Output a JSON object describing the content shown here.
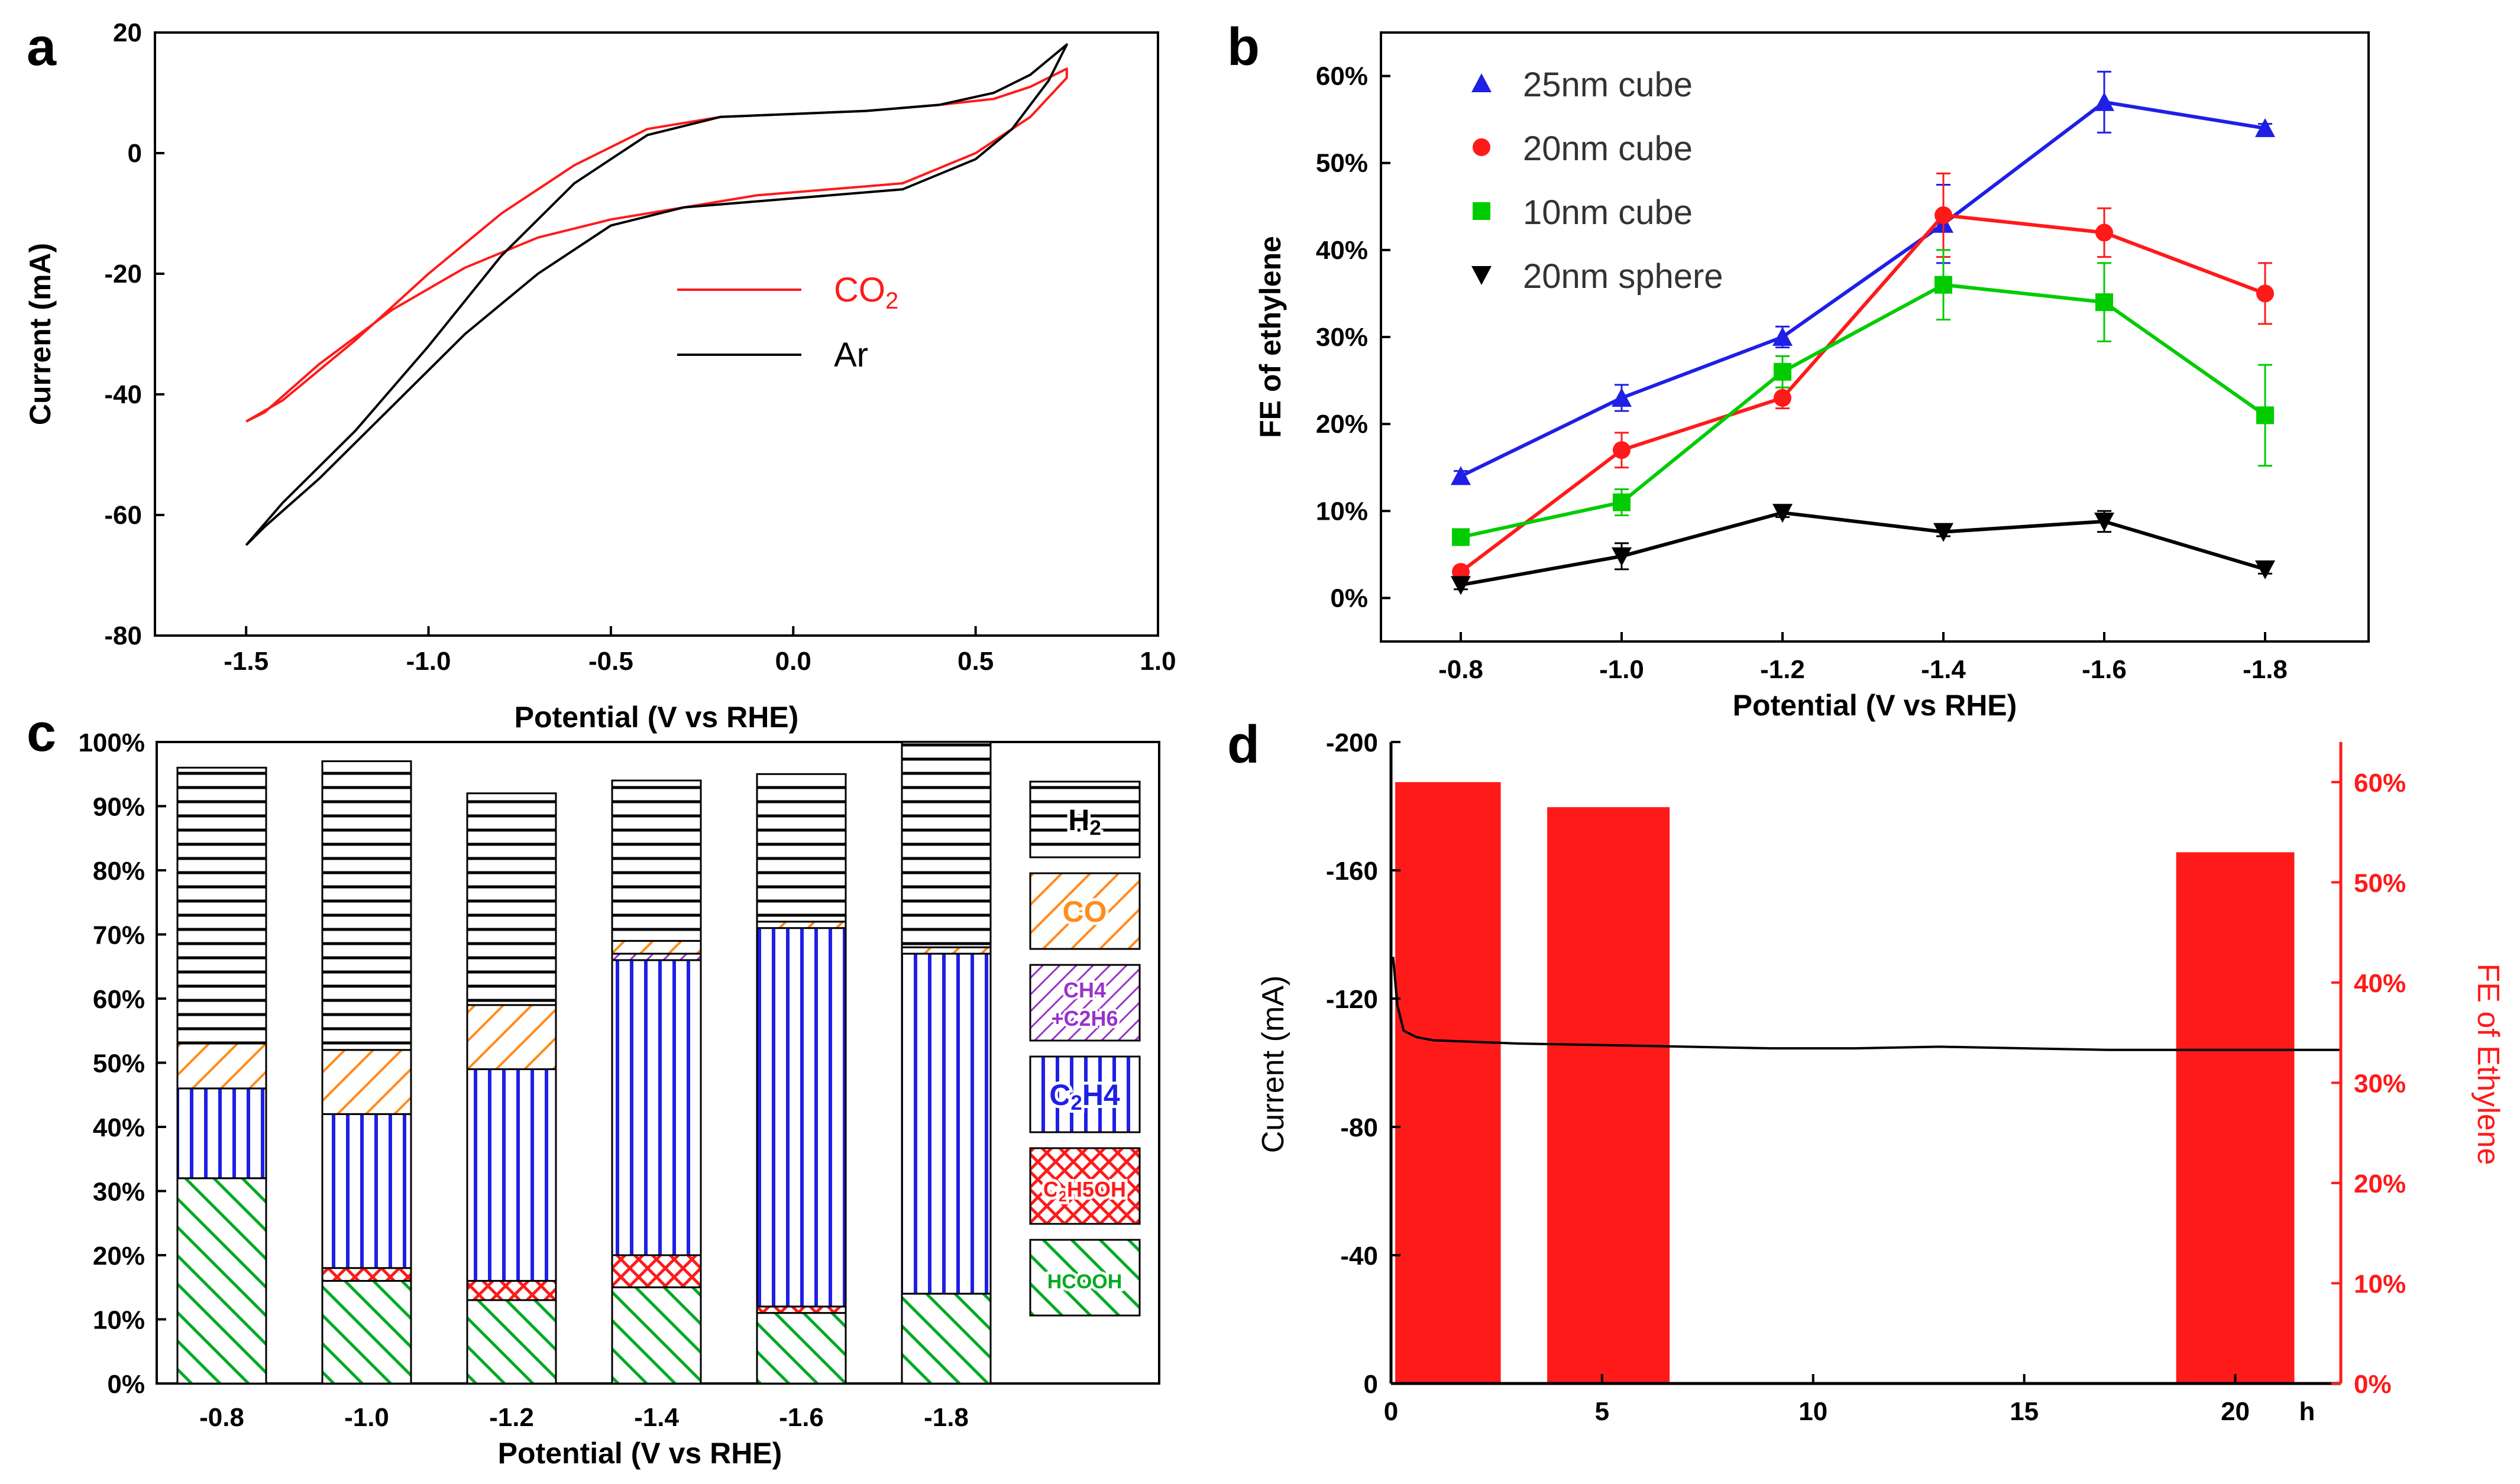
{
  "figure": {
    "panels": [
      {
        "id": "a",
        "label": "a"
      },
      {
        "id": "b",
        "label": "b"
      },
      {
        "id": "c",
        "label": "c"
      },
      {
        "id": "d",
        "label": "d"
      }
    ]
  },
  "colors": {
    "red": "#ff1a1a",
    "black": "#000000",
    "blue": "#1f1fe6",
    "green": "#00cc00",
    "orange": "#ff8c1a",
    "purple": "#9933cc",
    "hatchGreen": "#00aa22"
  },
  "chart_data": [
    {
      "id": "a",
      "type": "line",
      "title": "",
      "xlabel": "Potential (V vs RHE)",
      "ylabel": "Current (mA)",
      "xlim": [
        -1.75,
        1.0
      ],
      "ylim": [
        -80,
        20
      ],
      "xticks": [
        -1.5,
        -1.0,
        -0.5,
        0.0,
        0.5,
        1.0
      ],
      "xtick_labels": [
        "-1.5",
        "-1.0",
        "-0.5",
        "0.0",
        "0.5",
        "1.0"
      ],
      "yticks": [
        -80,
        -60,
        -40,
        -20,
        0,
        20
      ],
      "ytick_labels": [
        "-80",
        "-60",
        "-40",
        "-20",
        "0",
        "20"
      ],
      "series": [
        {
          "name": "CO2",
          "label_main": "CO",
          "label_sub": "2",
          "color": "#ff1a1a",
          "x": [
            -1.5,
            -1.4,
            -1.2,
            -1.0,
            -0.8,
            -0.6,
            -0.4,
            -0.2,
            0.0,
            0.2,
            0.4,
            0.55,
            0.65,
            0.75,
            0.75,
            0.65,
            0.5,
            0.3,
            0.1,
            -0.1,
            -0.3,
            -0.5,
            -0.7,
            -0.9,
            -1.1,
            -1.3,
            -1.45,
            -1.5
          ],
          "y": [
            -44.5,
            -41,
            -31,
            -20,
            -10,
            -2,
            4,
            6,
            6.5,
            7,
            8,
            9,
            11,
            14,
            12.5,
            6,
            0,
            -5,
            -6,
            -7,
            -9,
            -11,
            -14,
            -19,
            -26,
            -35,
            -43,
            -44.5
          ]
        },
        {
          "name": "Ar",
          "label_main": "Ar",
          "label_sub": "",
          "color": "#000000",
          "x": [
            -1.5,
            -1.4,
            -1.2,
            -1.0,
            -0.8,
            -0.6,
            -0.4,
            -0.2,
            0.0,
            0.2,
            0.4,
            0.55,
            0.65,
            0.75,
            0.7,
            0.6,
            0.5,
            0.3,
            0.1,
            -0.1,
            -0.3,
            -0.5,
            -0.7,
            -0.9,
            -1.1,
            -1.3,
            -1.45,
            -1.5
          ],
          "y": [
            -65,
            -58,
            -46,
            -32,
            -17,
            -5,
            3,
            6,
            6.5,
            7,
            8,
            10,
            13,
            18,
            12,
            4,
            -1,
            -6,
            -7,
            -8,
            -9,
            -12,
            -20,
            -30,
            -42,
            -54,
            -62,
            -65
          ]
        }
      ],
      "legend": "center-right"
    },
    {
      "id": "b",
      "type": "line",
      "title": "",
      "xlabel": "Potential (V vs RHE)",
      "ylabel": "FE of ethylene",
      "categories": [
        "-0.8",
        "-1.0",
        "-1.2",
        "-1.4",
        "-1.6",
        "-1.8"
      ],
      "ylim": [
        -5,
        65
      ],
      "yticks": [
        0,
        10,
        20,
        30,
        40,
        50,
        60
      ],
      "ytick_labels": [
        "0%",
        "10%",
        "20%",
        "30%",
        "40%",
        "50%",
        "60%"
      ],
      "series": [
        {
          "name": "25nm cube",
          "color": "#1f1fe6",
          "marker": "triangle-up",
          "values": [
            14,
            23,
            30,
            43,
            57,
            54
          ],
          "errors": [
            0.6,
            1.5,
            1.2,
            4.5,
            3.5,
            0.5
          ]
        },
        {
          "name": "20nm cube",
          "color": "#ff1a1a",
          "marker": "circle",
          "values": [
            3,
            17,
            23,
            44,
            42,
            35
          ],
          "errors": [
            0.5,
            2.0,
            1.2,
            4.8,
            2.8,
            3.5
          ]
        },
        {
          "name": "10nm cube",
          "color": "#00cc00",
          "marker": "square",
          "values": [
            7,
            11,
            26,
            36,
            34,
            21
          ],
          "errors": [
            0.5,
            1.5,
            1.8,
            4.0,
            4.5,
            5.8
          ]
        },
        {
          "name": "20nm sphere",
          "color": "#000000",
          "marker": "triangle-down",
          "values": [
            1.5,
            4.8,
            9.8,
            7.6,
            8.8,
            3.3
          ],
          "errors": [
            0.5,
            1.5,
            0.5,
            0.5,
            1.2,
            0.5
          ]
        }
      ],
      "legend": "top-left"
    },
    {
      "id": "c",
      "type": "bar",
      "stacked": true,
      "title": "",
      "xlabel": "Potential (V vs RHE)",
      "ylabel": "",
      "categories": [
        "-0.8",
        "-1.0",
        "-1.2",
        "-1.4",
        "-1.6",
        "-1.8"
      ],
      "ylim": [
        0,
        100
      ],
      "yticks": [
        0,
        10,
        20,
        30,
        40,
        50,
        60,
        70,
        80,
        90,
        100
      ],
      "ytick_labels": [
        "0%",
        "10%",
        "20%",
        "30%",
        "40%",
        "50%",
        "60%",
        "70%",
        "80%",
        "90%",
        "100%"
      ],
      "series": [
        {
          "name": "HCOOH",
          "label_main": "HCOOH",
          "label_main2": "",
          "label_sub": "",
          "label_rest": "",
          "pattern": "diag",
          "color": "#00aa22",
          "values": [
            32,
            16,
            13,
            15,
            11,
            14
          ]
        },
        {
          "name": "C2H5OH",
          "label_main": "C",
          "label_main2": "",
          "label_sub": "2",
          "label_rest": "H5OH",
          "pattern": "cross",
          "color": "#ff1a1a",
          "values": [
            0,
            2,
            3,
            5,
            1,
            0
          ]
        },
        {
          "name": "C2H4",
          "label_main": "C",
          "label_main2": "",
          "label_sub": "2",
          "label_rest": "H4",
          "pattern": "vert",
          "color": "#1f1fe6",
          "values": [
            14,
            24,
            33,
            46,
            59,
            53
          ]
        },
        {
          "name": "CH4+C2H6",
          "label_main": "CH4",
          "label_main2": "+C2H6",
          "label_sub": "",
          "label_rest": "",
          "pattern": "diag2",
          "color": "#9933cc",
          "values": [
            0,
            0,
            0,
            1,
            0,
            0
          ]
        },
        {
          "name": "CO",
          "label_main": "CO",
          "label_main2": "",
          "label_sub": "",
          "label_rest": "",
          "pattern": "diagOrange",
          "color": "#ff8c1a",
          "values": [
            7,
            10,
            10,
            2,
            1,
            1
          ]
        },
        {
          "name": "H2",
          "label_main": "H",
          "label_main2": "",
          "label_sub": "2",
          "label_rest": "",
          "pattern": "horiz",
          "color": "#000000",
          "values": [
            43,
            45,
            33,
            25,
            23,
            32
          ]
        }
      ],
      "legend": "right"
    },
    {
      "id": "d",
      "type": "bar",
      "title": "",
      "xlabel": "h",
      "ylabel": "Current (mA)",
      "ylabel_right": "FE of Ethylene",
      "xlim": [
        0,
        22.5
      ],
      "xticks": [
        0,
        5,
        10,
        15,
        20
      ],
      "xtick_labels": [
        "0",
        "5",
        "10",
        "15",
        "20"
      ],
      "ylim_left": [
        0,
        -200
      ],
      "yticks_left": [
        0,
        -40,
        -80,
        -120,
        -160,
        -200
      ],
      "ytick_labels_left": [
        "0",
        "-40",
        "-80",
        "-120",
        "-160",
        "-200"
      ],
      "ylim_right": [
        0,
        64
      ],
      "yticks_right": [
        0,
        10,
        20,
        30,
        40,
        50,
        60
      ],
      "ytick_labels_right": [
        "0%",
        "10%",
        "20%",
        "30%",
        "40%",
        "50%",
        "60%"
      ],
      "bars": {
        "name": "FE of Ethylene",
        "color": "#ff1a1a",
        "x_start": [
          0.1,
          3.7,
          18.6
        ],
        "x_end": [
          2.6,
          6.6,
          21.4
        ],
        "values": [
          60,
          57.5,
          53
        ]
      },
      "line": {
        "name": "Current",
        "color": "#000000",
        "x": [
          0.05,
          0.15,
          0.3,
          0.6,
          1,
          2,
          3,
          5,
          7,
          9,
          11,
          13,
          15,
          17,
          19,
          21,
          22.5
        ],
        "y": [
          -133,
          -118,
          -110,
          -108,
          -107,
          -106.5,
          -106,
          -105.5,
          -105,
          -104.5,
          -104.5,
          -105,
          -104.5,
          -104,
          -104,
          -104,
          -104
        ]
      }
    }
  ]
}
